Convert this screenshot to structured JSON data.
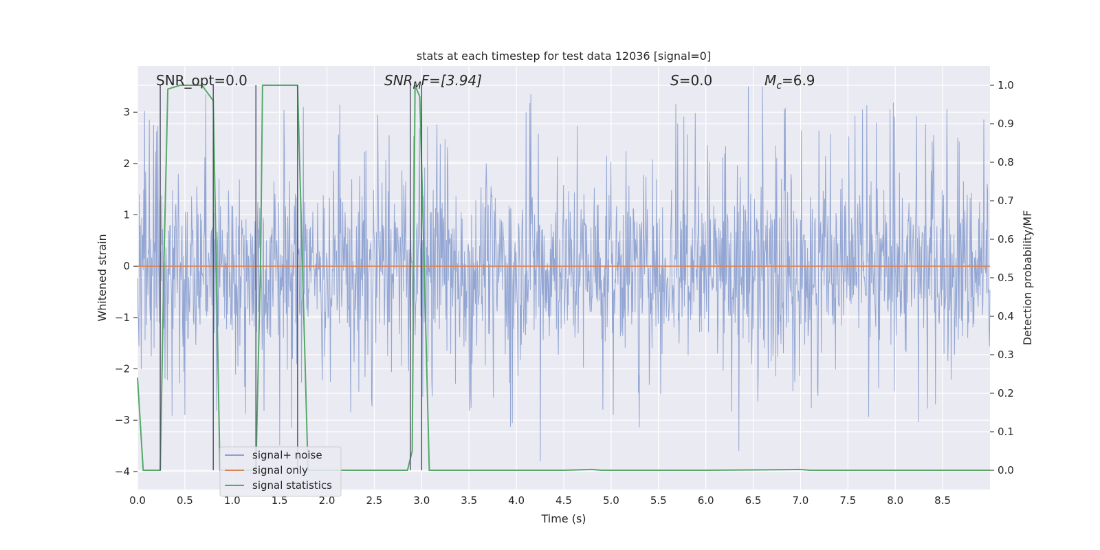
{
  "chart_data": {
    "type": "line",
    "title": "stats at each timestep for test data 12036 [signal=0]",
    "xlabel": "Time (s)",
    "ylabel": "Whitened strain",
    "ylabel_right": "Detection probability/MF",
    "xlim": [
      0.0,
      9.0
    ],
    "ylim": [
      -4.35,
      3.9
    ],
    "ylim_right": [
      -0.05,
      1.05
    ],
    "grid": true,
    "legend_position": "lower-left",
    "x_ticks": [
      "0.0",
      "0.5",
      "1.0",
      "1.5",
      "2.0",
      "2.5",
      "3.0",
      "3.5",
      "4.0",
      "4.5",
      "5.0",
      "5.5",
      "6.0",
      "6.5",
      "7.0",
      "7.5",
      "8.0",
      "8.5"
    ],
    "y_ticks": [
      "3",
      "2",
      "1",
      "0",
      "−1",
      "−2",
      "−3",
      "−4"
    ],
    "y_right_ticks": [
      "1.0",
      "0.9",
      "0.8",
      "0.7",
      "0.6",
      "0.5",
      "0.4",
      "0.3",
      "0.2",
      "0.1",
      "0.0"
    ],
    "annotations": {
      "snr_opt": "SNR_opt=0.0",
      "snr_mf_sym": "SNR",
      "snr_mf_sub": "M",
      "snr_mf_rest": "F=[3.94]",
      "s_sym": "S",
      "s_rest": "=0.0",
      "mc_sym": "M",
      "mc_sub": "c",
      "mc_rest": "=6.9"
    },
    "series": [
      {
        "name": "signal+ noise",
        "axis": "left",
        "color": "#8a9fcf",
        "description": "whitened strain noise, roughly uniform amplitude ±1.7 with spikes up to ±3.5",
        "envelope": {
          "typical_amplitude": 1.7,
          "max_peak": 3.5,
          "min_trough": -3.8
        },
        "peaks": [
          {
            "x": 0.17,
            "y": 2.75
          },
          {
            "x": 0.72,
            "y": 3.35
          },
          {
            "x": 1.75,
            "y": 3.1
          },
          {
            "x": 4.15,
            "y": 3.35
          },
          {
            "x": 6.45,
            "y": 3.5
          },
          {
            "x": 6.6,
            "y": 3.5
          },
          {
            "x": 4.25,
            "y": -3.8
          },
          {
            "x": 6.35,
            "y": -3.6
          },
          {
            "x": 1.5,
            "y": -3.5
          }
        ]
      },
      {
        "name": "signal only",
        "axis": "left",
        "color": "#dd8452",
        "x": [
          0.0,
          9.0
        ],
        "y": [
          0.0,
          0.0
        ]
      },
      {
        "name": "signal statistics",
        "axis": "right",
        "color": "#55a868",
        "x": [
          0.0,
          0.06,
          0.24,
          0.28,
          0.32,
          0.45,
          0.68,
          0.8,
          0.87,
          1.25,
          1.3,
          1.32,
          1.5,
          1.69,
          1.8,
          1.93,
          2.5,
          2.85,
          2.9,
          2.93,
          2.98,
          3.02,
          3.08,
          3.5,
          4.5,
          4.8,
          4.9,
          6.0,
          7.0,
          7.1,
          8.0,
          9.0
        ],
        "y": [
          0.24,
          0.0,
          0.0,
          0.55,
          0.99,
          1.0,
          1.0,
          0.96,
          0.0,
          0.0,
          0.55,
          1.0,
          1.0,
          1.0,
          0.0,
          0.0,
          0.0,
          0.0,
          0.05,
          1.0,
          0.97,
          0.6,
          0.0,
          0.0,
          0.0,
          0.002,
          0.0,
          0.0,
          0.002,
          0.0,
          0.0,
          0.0
        ]
      }
    ],
    "vertical_markers": {
      "color": "#4c4c60",
      "x": [
        0.24,
        0.8,
        1.25,
        1.69,
        2.88,
        3.0
      ],
      "y_bottom_right": 0.0,
      "y_top_right": 1.0
    },
    "colors": {
      "plot_background": "#eaeaf2",
      "grid": "#ffffff",
      "legend_background": "#eaeaf2",
      "legend_border": "#cccccc"
    }
  }
}
